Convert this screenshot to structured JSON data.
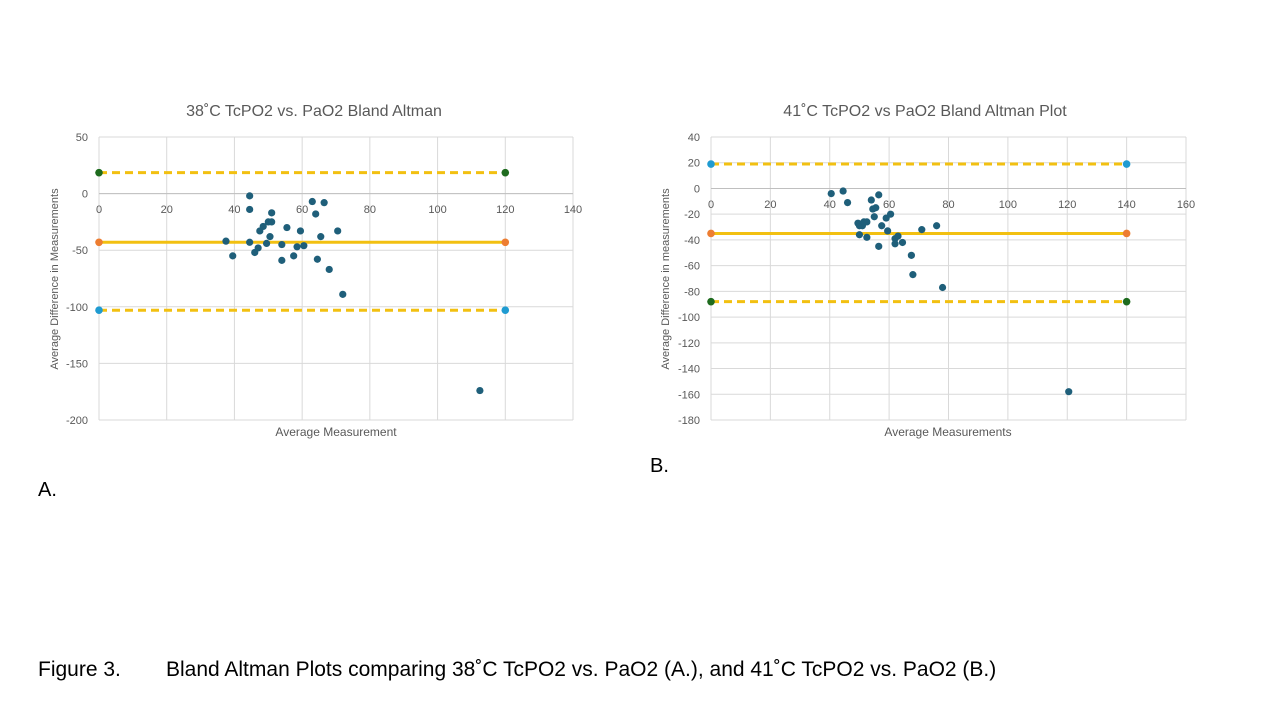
{
  "caption": {
    "figure_label": "Figure 3.",
    "text": "Bland Altman Plots comparing 38˚C TcPO2 vs. PaO2 (A.), and 41˚C TcPO2 vs. PaO2 (B.)"
  },
  "panels": {
    "a_label": "A.",
    "b_label": "B."
  },
  "colors": {
    "points": "#1f5f7a",
    "mean_line": "#f2c011",
    "limit_line": "#f2c011",
    "gridline": "#d9d9d9",
    "axis_text": "#595959",
    "endpoint_green": "#1e6b1e",
    "endpoint_orange": "#ed7d31",
    "endpoint_blue": "#1f9bd1"
  },
  "chart_data": [
    {
      "type": "scatter",
      "title": "38˚C TcPO2 vs. PaO2 Bland Altman",
      "xlabel": "Average Measurement",
      "ylabel": "Average Difference in Measurements",
      "xlim": [
        0,
        140
      ],
      "ylim": [
        -200,
        50
      ],
      "xticks": [
        0,
        20,
        40,
        60,
        80,
        100,
        120,
        140
      ],
      "yticks": [
        50,
        0,
        -50,
        -100,
        -150,
        -200
      ],
      "grid": true,
      "points": [
        {
          "x": 37.5,
          "y": -42
        },
        {
          "x": 39.5,
          "y": -55
        },
        {
          "x": 44.5,
          "y": -43
        },
        {
          "x": 44.5,
          "y": -2
        },
        {
          "x": 44.5,
          "y": -14
        },
        {
          "x": 46,
          "y": -52
        },
        {
          "x": 47,
          "y": -48
        },
        {
          "x": 47.5,
          "y": -33
        },
        {
          "x": 48.5,
          "y": -29
        },
        {
          "x": 49.5,
          "y": -44
        },
        {
          "x": 50,
          "y": -25
        },
        {
          "x": 50.5,
          "y": -38
        },
        {
          "x": 51,
          "y": -25
        },
        {
          "x": 51,
          "y": -17
        },
        {
          "x": 54,
          "y": -45
        },
        {
          "x": 54,
          "y": -59
        },
        {
          "x": 55.5,
          "y": -30
        },
        {
          "x": 57.5,
          "y": -55
        },
        {
          "x": 58.5,
          "y": -47
        },
        {
          "x": 59.5,
          "y": -33
        },
        {
          "x": 60.5,
          "y": -46
        },
        {
          "x": 63,
          "y": -7
        },
        {
          "x": 64,
          "y": -18
        },
        {
          "x": 64.5,
          "y": -58
        },
        {
          "x": 65.5,
          "y": -38
        },
        {
          "x": 66.5,
          "y": -8
        },
        {
          "x": 68,
          "y": -67
        },
        {
          "x": 70.5,
          "y": -33
        },
        {
          "x": 72,
          "y": -89
        },
        {
          "x": 112.5,
          "y": -174
        }
      ],
      "lines": [
        {
          "role": "upper_limit",
          "style": "dashed",
          "x": [
            0,
            120
          ],
          "y": 18.5,
          "endpoint_color": "endpoint_green"
        },
        {
          "role": "mean",
          "style": "solid",
          "x": [
            0,
            120
          ],
          "y": -43,
          "endpoint_color": "endpoint_orange"
        },
        {
          "role": "lower_limit",
          "style": "dashed",
          "x": [
            0,
            120
          ],
          "y": -103,
          "endpoint_color": "endpoint_blue"
        }
      ]
    },
    {
      "type": "scatter",
      "title": "41˚C TcPO2 vs PaO2 Bland Altman Plot",
      "xlabel": "Average Measurements",
      "ylabel": "Average Difference in measurements",
      "xlim": [
        0,
        160
      ],
      "ylim": [
        -180,
        40
      ],
      "xticks": [
        0,
        20,
        40,
        60,
        80,
        100,
        120,
        140,
        160
      ],
      "yticks": [
        40,
        20,
        0,
        -20,
        -40,
        -60,
        -80,
        -100,
        -120,
        -140,
        -160,
        -180
      ],
      "grid": true,
      "points": [
        {
          "x": 40.5,
          "y": -4
        },
        {
          "x": 44.5,
          "y": -2
        },
        {
          "x": 46,
          "y": -11
        },
        {
          "x": 49.5,
          "y": -27
        },
        {
          "x": 50,
          "y": -36
        },
        {
          "x": 50,
          "y": -29
        },
        {
          "x": 51,
          "y": -29
        },
        {
          "x": 51.5,
          "y": -26
        },
        {
          "x": 52.5,
          "y": -38
        },
        {
          "x": 52.5,
          "y": -26
        },
        {
          "x": 54,
          "y": -9
        },
        {
          "x": 54.5,
          "y": -16
        },
        {
          "x": 55,
          "y": -22
        },
        {
          "x": 55.5,
          "y": -15
        },
        {
          "x": 56.5,
          "y": -5
        },
        {
          "x": 56.5,
          "y": -45
        },
        {
          "x": 57.5,
          "y": -29
        },
        {
          "x": 59,
          "y": -23
        },
        {
          "x": 59.5,
          "y": -33
        },
        {
          "x": 60.5,
          "y": -20
        },
        {
          "x": 62,
          "y": -39
        },
        {
          "x": 62,
          "y": -43
        },
        {
          "x": 63,
          "y": -37
        },
        {
          "x": 64.5,
          "y": -42
        },
        {
          "x": 67.5,
          "y": -52
        },
        {
          "x": 68,
          "y": -67
        },
        {
          "x": 71,
          "y": -32
        },
        {
          "x": 76,
          "y": -29
        },
        {
          "x": 78,
          "y": -77
        },
        {
          "x": 120.5,
          "y": -158
        }
      ],
      "lines": [
        {
          "role": "upper_limit",
          "style": "dashed",
          "x": [
            0,
            140
          ],
          "y": 19,
          "endpoint_color": "endpoint_blue"
        },
        {
          "role": "mean",
          "style": "solid",
          "x": [
            0,
            140
          ],
          "y": -35,
          "endpoint_color": "endpoint_orange"
        },
        {
          "role": "lower_limit",
          "style": "dashed",
          "x": [
            0,
            140
          ],
          "y": -88,
          "endpoint_color": "endpoint_green"
        }
      ]
    }
  ]
}
